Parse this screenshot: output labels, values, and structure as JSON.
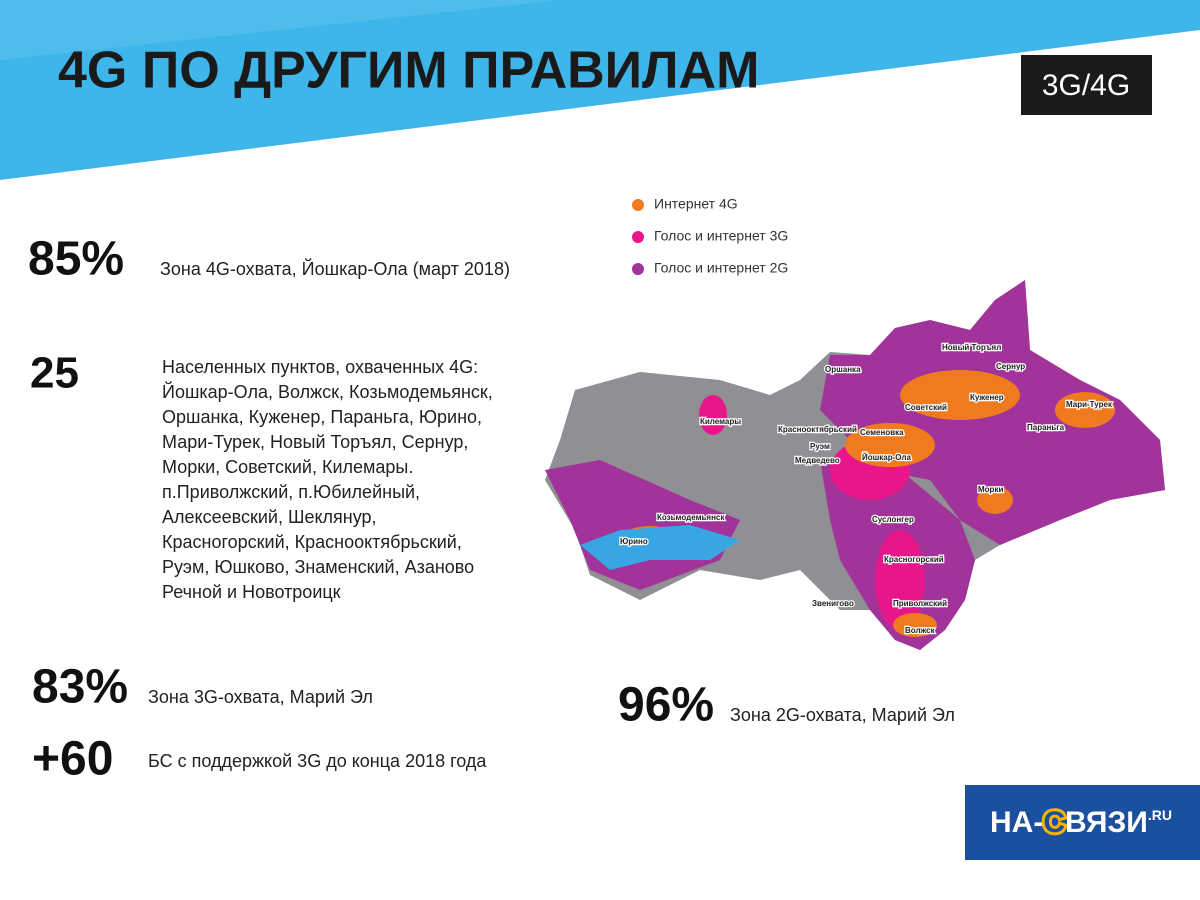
{
  "header": {
    "title": "4G ПО ДРУГИМ ПРАВИЛАМ",
    "badge": "3G/4G"
  },
  "legend": [
    {
      "label": "Интернет 4G",
      "color": "#f07b1f"
    },
    {
      "label": "Голос и интернет 3G",
      "color": "#e8168b"
    },
    {
      "label": "Голос и интернет 2G",
      "color": "#a1339a"
    }
  ],
  "stats": [
    {
      "value": "85%",
      "label": "Зона 4G-охвата, Йошкар-Ола (март 2018)"
    },
    {
      "value": "25",
      "lines": [
        "Населенных пунктов, охваченных 4G:",
        "Йошкар-Ола, Волжск, Козьмодемьянск,",
        "Оршанка, Куженер, Параньга, Юрино,",
        "Мари-Турек, Новый Торъял, Сернур,",
        "Морки, Советский, Килемары.",
        "п.Приволжский, п.Юбилейный,",
        "Алексеевский, Шеклянур,",
        "Красногорский, Краснооктябрьский,",
        "Руэм, Юшково, Знаменский, Азаново",
        "Речной и Новотроицк"
      ]
    },
    {
      "value": "83%",
      "label": "Зона 3G-охвата, Марий Эл"
    },
    {
      "value": "+60",
      "label": "БС с поддержкой 3G до конца 2018 года"
    },
    {
      "value": "96%",
      "label": "Зона 2G-охвата, Марий Эл"
    }
  ],
  "map_labels": [
    "Оршанка",
    "Новый Торъял",
    "Сернур",
    "Советский",
    "Куженер",
    "Мари-Турек",
    "Параньга",
    "Килемары",
    "Краснооктябрьский",
    "Семеновка",
    "Медведево",
    "Руэм",
    "Йошкар-Ола",
    "Морки",
    "Козьмодемьянск",
    "Юрино",
    "Суслонгер",
    "Красногорский",
    "Звенигово",
    "Приволжский",
    "Волжск"
  ],
  "logo": {
    "parts": [
      "НА-",
      "С",
      "ВЯЗИ",
      ".RU"
    ]
  }
}
